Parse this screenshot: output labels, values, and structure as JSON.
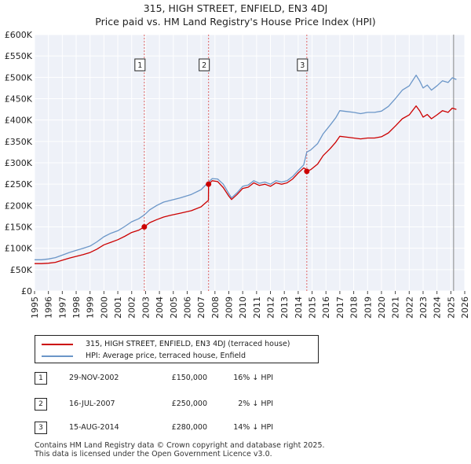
{
  "chart_data": {
    "type": "line",
    "title": "315, HIGH STREET, ENFIELD, EN3 4DJ",
    "subtitle": "Price paid vs. HM Land Registry's House Price Index (HPI)",
    "xlabel": "",
    "ylabel": "",
    "xlim": [
      1995,
      2026
    ],
    "ylim": [
      0,
      600000
    ],
    "y_ticks": [
      0,
      50000,
      100000,
      150000,
      200000,
      250000,
      300000,
      350000,
      400000,
      450000,
      500000,
      550000,
      600000
    ],
    "y_tick_labels": [
      "£0",
      "£50K",
      "£100K",
      "£150K",
      "£200K",
      "£250K",
      "£300K",
      "£350K",
      "£400K",
      "£450K",
      "£500K",
      "£550K",
      "£600K"
    ],
    "x_ticks": [
      1995,
      1996,
      1997,
      1998,
      1999,
      2000,
      2001,
      2002,
      2003,
      2004,
      2005,
      2006,
      2007,
      2008,
      2009,
      2010,
      2011,
      2012,
      2013,
      2014,
      2015,
      2016,
      2017,
      2018,
      2019,
      2020,
      2021,
      2022,
      2023,
      2024,
      2025,
      2026
    ],
    "x_tick_labels": [
      "1995",
      "1996",
      "1997",
      "1998",
      "1999",
      "2000",
      "2001",
      "2002",
      "2003",
      "2004",
      "2005",
      "2006",
      "2007",
      "2008",
      "2009",
      "2010",
      "2011",
      "2012",
      "2013",
      "2014",
      "2015",
      "2016",
      "2017",
      "2018",
      "2019",
      "2020",
      "2021",
      "2022",
      "2023",
      "2024",
      "2025",
      "2026"
    ],
    "grid": true,
    "series": [
      {
        "name": "HPI: Average price, terraced house, Enfield",
        "color": "#6b96c8",
        "x": [
          1995.0,
          1995.5,
          1996.0,
          1996.5,
          1997.0,
          1997.5,
          1998.0,
          1998.5,
          1999.0,
          1999.5,
          2000.0,
          2000.5,
          2001.0,
          2001.5,
          2002.0,
          2002.5,
          2002.91,
          2003.3,
          2003.8,
          2004.3,
          2004.8,
          2005.5,
          2006.3,
          2007.0,
          2007.54,
          2007.8,
          2008.2,
          2008.6,
          2009.0,
          2009.2,
          2009.6,
          2010.0,
          2010.4,
          2010.8,
          2011.2,
          2011.6,
          2012.0,
          2012.4,
          2012.8,
          2013.2,
          2013.6,
          2014.0,
          2014.4,
          2014.62,
          2014.9,
          2015.4,
          2015.8,
          2016.3,
          2016.7,
          2017.0,
          2017.5,
          2018.0,
          2018.5,
          2019.0,
          2019.5,
          2020.0,
          2020.5,
          2021.0,
          2021.5,
          2022.0,
          2022.5,
          2022.75,
          2023.0,
          2023.3,
          2023.6,
          2024.0,
          2024.4,
          2024.8,
          2025.1,
          2025.4
        ],
        "values": [
          73000,
          73000,
          75000,
          78000,
          84000,
          90000,
          95000,
          100000,
          105000,
          115000,
          127000,
          135000,
          141000,
          151000,
          162000,
          169000,
          178000,
          190000,
          200000,
          208000,
          212000,
          218000,
          226000,
          237000,
          255000,
          263000,
          262000,
          250000,
          228000,
          218000,
          230000,
          245000,
          248000,
          258000,
          252000,
          255000,
          250000,
          258000,
          255000,
          258000,
          268000,
          282000,
          295000,
          325000,
          330000,
          345000,
          368000,
          388000,
          405000,
          422000,
          420000,
          418000,
          415000,
          418000,
          418000,
          421000,
          432000,
          450000,
          470000,
          480000,
          505000,
          492000,
          475000,
          482000,
          470000,
          480000,
          492000,
          488000,
          499000,
          495000
        ]
      },
      {
        "name": "315, HIGH STREET, ENFIELD, EN3 4DJ (terraced house)",
        "color": "#cc0000",
        "x": [
          1995.0,
          1995.5,
          1996.0,
          1996.5,
          1997.0,
          1997.5,
          1998.0,
          1998.5,
          1999.0,
          1999.5,
          2000.0,
          2000.5,
          2001.0,
          2001.5,
          2002.0,
          2002.5,
          2002.91,
          2003.3,
          2003.8,
          2004.3,
          2004.8,
          2005.5,
          2006.3,
          2007.0,
          2007.53,
          2007.54,
          2007.8,
          2008.2,
          2008.6,
          2009.0,
          2009.2,
          2009.6,
          2010.0,
          2010.4,
          2010.8,
          2011.2,
          2011.6,
          2012.0,
          2012.4,
          2012.8,
          2013.2,
          2013.6,
          2014.0,
          2014.4,
          2014.61,
          2014.62,
          2014.9,
          2015.4,
          2015.8,
          2016.3,
          2016.7,
          2017.0,
          2017.5,
          2018.0,
          2018.5,
          2019.0,
          2019.5,
          2020.0,
          2020.5,
          2021.0,
          2021.5,
          2022.0,
          2022.5,
          2022.75,
          2023.0,
          2023.3,
          2023.6,
          2024.0,
          2024.4,
          2024.8,
          2025.1,
          2025.4
        ],
        "values": [
          64000,
          64000,
          65000,
          67000,
          72000,
          77000,
          81000,
          85000,
          90000,
          98000,
          108000,
          114000,
          120000,
          128000,
          137000,
          142000,
          150000,
          160000,
          167000,
          173000,
          177000,
          182000,
          188000,
          197000,
          212000,
          250000,
          258000,
          256000,
          242000,
          222000,
          214000,
          226000,
          240000,
          243000,
          253000,
          247000,
          250000,
          245000,
          253000,
          250000,
          253000,
          262000,
          276000,
          288000,
          284000,
          280000,
          284000,
          297000,
          317000,
          333000,
          348000,
          362000,
          360000,
          358000,
          356000,
          358000,
          358000,
          361000,
          370000,
          386000,
          403000,
          412000,
          433000,
          422000,
          407000,
          413000,
          403000,
          412000,
          422000,
          418000,
          428000,
          425000
        ]
      }
    ],
    "annotations": [
      {
        "label": "1",
        "x": 2002.91,
        "price": 150000
      },
      {
        "label": "2",
        "x": 2007.54,
        "price": 250000
      },
      {
        "label": "3",
        "x": 2014.62,
        "price": 280000
      }
    ]
  },
  "legend": {
    "property_label": "315, HIGH STREET, ENFIELD, EN3 4DJ (terraced house)",
    "hpi_label": "HPI: Average price, terraced house, Enfield"
  },
  "sales": [
    {
      "num": "1",
      "date": "29-NOV-2002",
      "price": "£150,000",
      "hpi": "16% ↓ HPI"
    },
    {
      "num": "2",
      "date": "16-JUL-2007",
      "price": "£250,000",
      "hpi": "2% ↓ HPI"
    },
    {
      "num": "3",
      "date": "15-AUG-2014",
      "price": "£280,000",
      "hpi": "14% ↓ HPI"
    }
  ],
  "footer": {
    "line1": "Contains HM Land Registry data © Crown copyright and database right 2025.",
    "line2": "This data is licensed under the Open Government Licence v3.0."
  }
}
